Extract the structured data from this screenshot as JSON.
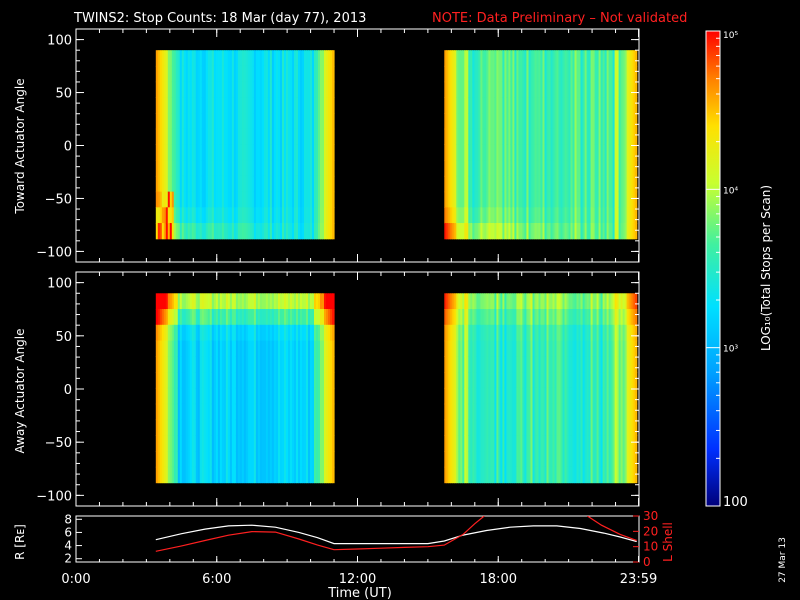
{
  "header": {
    "title": "TWINS2: Stop Counts: 18 Mar (day  77), 2013",
    "note": "NOTE: Data Preliminary – Not validated",
    "note_color": "#ff2020"
  },
  "footer": {
    "date_stamp": "27 Mar 13"
  },
  "chart_data": [
    {
      "type": "heatmap",
      "panel": "toward",
      "ylabel": "Toward Actuator Angle",
      "ylim": [
        -110,
        110
      ],
      "yticks": [
        "100",
        "50",
        "0",
        "−50",
        "−100"
      ],
      "ytick_values": [
        100,
        50,
        0,
        -50,
        -100
      ],
      "xlim": [
        0,
        24
      ],
      "angle_range": [
        -88,
        90
      ],
      "data_intervals_hours": [
        [
          3.4,
          11.0
        ],
        [
          15.7,
          23.9
        ]
      ],
      "log_counts_range": [
        2,
        5
      ],
      "background_log_counts": 3.3
    },
    {
      "type": "heatmap",
      "panel": "away",
      "ylabel": "Away Actuator Angle",
      "ylim": [
        -110,
        110
      ],
      "yticks": [
        "100",
        "50",
        "0",
        "−50",
        "−100"
      ],
      "ytick_values": [
        100,
        50,
        0,
        -50,
        -100
      ],
      "xlim": [
        0,
        24
      ],
      "angle_range": [
        -88,
        90
      ],
      "data_intervals_hours": [
        [
          3.4,
          11.0
        ],
        [
          15.7,
          23.9
        ]
      ],
      "log_counts_range": [
        2,
        5
      ],
      "background_log_counts": 3.2
    },
    {
      "type": "line",
      "panel": "orbit",
      "xlabel": "Time (UT)",
      "xticks": [
        "0:00",
        "6:00",
        "12:00",
        "18:00",
        "23:59"
      ],
      "xtick_values": [
        0,
        6,
        12,
        18,
        23.98
      ],
      "xlim": [
        0,
        24
      ],
      "left_axis": {
        "label": "R [Rᴇ]",
        "ticks": [
          "8",
          "6",
          "4",
          "2"
        ],
        "values": [
          8,
          6,
          4,
          2
        ],
        "ylim": [
          1.5,
          8.5
        ]
      },
      "right_axis": {
        "label": "L Shell",
        "ticks": [
          "30",
          "20",
          "10",
          "0"
        ],
        "values": [
          30,
          20,
          10,
          0
        ],
        "ylim": [
          0,
          30
        ],
        "color": "#ff2020"
      },
      "series": [
        {
          "color": "#ffffff",
          "axis": "left",
          "x": [
            3.4,
            4.5,
            5.5,
            6.5,
            7.5,
            8.5,
            9.5,
            10.3,
            11.0,
            12.0,
            13.0,
            14.0,
            15.0,
            15.7,
            16.5,
            17.5,
            18.5,
            19.5,
            20.5,
            21.5,
            22.5,
            23.2,
            23.9
          ],
          "y": [
            4.9,
            5.8,
            6.5,
            7.0,
            7.1,
            6.8,
            6.0,
            5.2,
            4.3,
            4.3,
            4.3,
            4.3,
            4.3,
            4.7,
            5.6,
            6.3,
            6.8,
            7.0,
            7.0,
            6.6,
            5.9,
            5.3,
            4.6
          ]
        },
        {
          "color": "#ff2020",
          "axis": "right",
          "x": [
            3.4,
            4.5,
            5.5,
            6.5,
            7.5,
            8.5,
            9.5,
            10.3,
            11.0,
            12.0,
            13.0,
            14.0,
            15.0,
            15.7,
            16.5,
            17.0,
            17.4
          ],
          "y": [
            7.0,
            10.5,
            14.0,
            17.5,
            19.8,
            19.5,
            15.0,
            11.0,
            8.0,
            8.5,
            9.0,
            9.5,
            10.0,
            11.0,
            18.0,
            25.0,
            30.0
          ]
        },
        {
          "color": "#ff2020",
          "axis": "right",
          "x": [
            21.8,
            22.4,
            23.2,
            23.9
          ],
          "y": [
            30.0,
            24.0,
            18.0,
            14.0
          ]
        }
      ]
    },
    {
      "type": "colorbar",
      "label": "LOG₁₀(Total Stops per Scan)",
      "ticks": [
        "10⁵",
        "10⁴",
        "10³",
        "100"
      ],
      "tick_values": [
        5,
        4,
        3,
        2
      ],
      "range": [
        2,
        5
      ]
    }
  ]
}
